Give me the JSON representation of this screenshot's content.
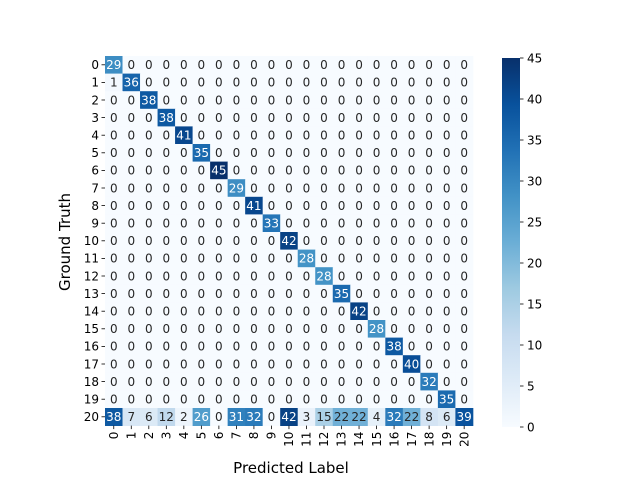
{
  "chart_data": {
    "type": "heatmap",
    "title": "",
    "xlabel": "Predicted Label",
    "ylabel": "Ground Truth",
    "x_categories": [
      "0",
      "1",
      "2",
      "3",
      "4",
      "5",
      "6",
      "7",
      "8",
      "9",
      "10",
      "11",
      "12",
      "13",
      "14",
      "15",
      "16",
      "17",
      "18",
      "19",
      "20"
    ],
    "y_categories": [
      "0",
      "1",
      "2",
      "3",
      "4",
      "5",
      "6",
      "7",
      "8",
      "9",
      "10",
      "11",
      "12",
      "13",
      "14",
      "15",
      "16",
      "17",
      "18",
      "19",
      "20"
    ],
    "matrix": [
      [
        29,
        0,
        0,
        0,
        0,
        0,
        0,
        0,
        0,
        0,
        0,
        0,
        0,
        0,
        0,
        0,
        0,
        0,
        0,
        0,
        0
      ],
      [
        1,
        36,
        0,
        0,
        0,
        0,
        0,
        0,
        0,
        0,
        0,
        0,
        0,
        0,
        0,
        0,
        0,
        0,
        0,
        0,
        0
      ],
      [
        0,
        0,
        38,
        0,
        0,
        0,
        0,
        0,
        0,
        0,
        0,
        0,
        0,
        0,
        0,
        0,
        0,
        0,
        0,
        0,
        0
      ],
      [
        0,
        0,
        0,
        38,
        0,
        0,
        0,
        0,
        0,
        0,
        0,
        0,
        0,
        0,
        0,
        0,
        0,
        0,
        0,
        0,
        0
      ],
      [
        0,
        0,
        0,
        0,
        41,
        0,
        0,
        0,
        0,
        0,
        0,
        0,
        0,
        0,
        0,
        0,
        0,
        0,
        0,
        0,
        0
      ],
      [
        0,
        0,
        0,
        0,
        0,
        35,
        0,
        0,
        0,
        0,
        0,
        0,
        0,
        0,
        0,
        0,
        0,
        0,
        0,
        0,
        0
      ],
      [
        0,
        0,
        0,
        0,
        0,
        0,
        45,
        0,
        0,
        0,
        0,
        0,
        0,
        0,
        0,
        0,
        0,
        0,
        0,
        0,
        0
      ],
      [
        0,
        0,
        0,
        0,
        0,
        0,
        0,
        29,
        0,
        0,
        0,
        0,
        0,
        0,
        0,
        0,
        0,
        0,
        0,
        0,
        0
      ],
      [
        0,
        0,
        0,
        0,
        0,
        0,
        0,
        0,
        41,
        0,
        0,
        0,
        0,
        0,
        0,
        0,
        0,
        0,
        0,
        0,
        0
      ],
      [
        0,
        0,
        0,
        0,
        0,
        0,
        0,
        0,
        0,
        33,
        0,
        0,
        0,
        0,
        0,
        0,
        0,
        0,
        0,
        0,
        0
      ],
      [
        0,
        0,
        0,
        0,
        0,
        0,
        0,
        0,
        0,
        0,
        42,
        0,
        0,
        0,
        0,
        0,
        0,
        0,
        0,
        0,
        0
      ],
      [
        0,
        0,
        0,
        0,
        0,
        0,
        0,
        0,
        0,
        0,
        0,
        28,
        0,
        0,
        0,
        0,
        0,
        0,
        0,
        0,
        0
      ],
      [
        0,
        0,
        0,
        0,
        0,
        0,
        0,
        0,
        0,
        0,
        0,
        0,
        28,
        0,
        0,
        0,
        0,
        0,
        0,
        0,
        0
      ],
      [
        0,
        0,
        0,
        0,
        0,
        0,
        0,
        0,
        0,
        0,
        0,
        0,
        0,
        35,
        0,
        0,
        0,
        0,
        0,
        0,
        0
      ],
      [
        0,
        0,
        0,
        0,
        0,
        0,
        0,
        0,
        0,
        0,
        0,
        0,
        0,
        0,
        42,
        0,
        0,
        0,
        0,
        0,
        0
      ],
      [
        0,
        0,
        0,
        0,
        0,
        0,
        0,
        0,
        0,
        0,
        0,
        0,
        0,
        0,
        0,
        28,
        0,
        0,
        0,
        0,
        0
      ],
      [
        0,
        0,
        0,
        0,
        0,
        0,
        0,
        0,
        0,
        0,
        0,
        0,
        0,
        0,
        0,
        0,
        38,
        0,
        0,
        0,
        0
      ],
      [
        0,
        0,
        0,
        0,
        0,
        0,
        0,
        0,
        0,
        0,
        0,
        0,
        0,
        0,
        0,
        0,
        0,
        40,
        0,
        0,
        0
      ],
      [
        0,
        0,
        0,
        0,
        0,
        0,
        0,
        0,
        0,
        0,
        0,
        0,
        0,
        0,
        0,
        0,
        0,
        0,
        32,
        0,
        0
      ],
      [
        0,
        0,
        0,
        0,
        0,
        0,
        0,
        0,
        0,
        0,
        0,
        0,
        0,
        0,
        0,
        0,
        0,
        0,
        0,
        35,
        0
      ],
      [
        38,
        7,
        6,
        12,
        2,
        26,
        0,
        31,
        32,
        0,
        42,
        3,
        15,
        22,
        22,
        4,
        32,
        22,
        8,
        6,
        39
      ]
    ],
    "colorbar": {
      "min": 0,
      "max": 45,
      "ticks": [
        "0",
        "5",
        "10",
        "15",
        "20",
        "25",
        "30",
        "35",
        "40",
        "45"
      ]
    },
    "colormap": "Blues",
    "grid": false,
    "legend": "colorbar-right"
  }
}
